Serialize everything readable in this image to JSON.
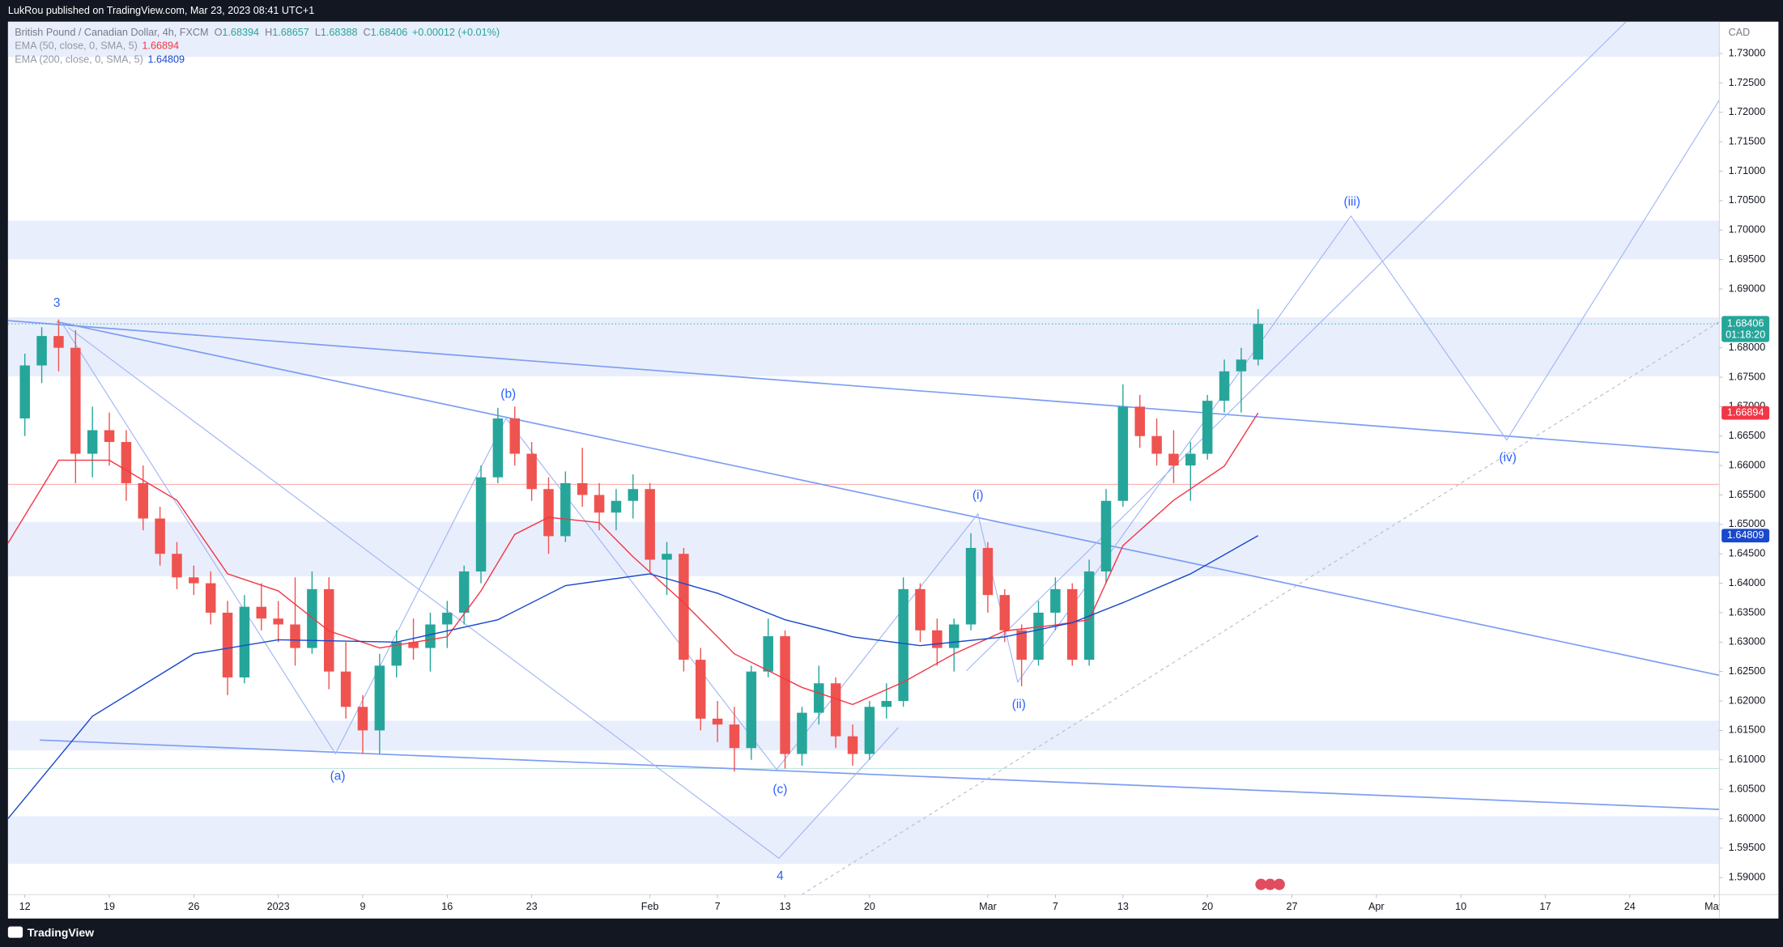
{
  "page": {
    "publisher": "LukRou published on TradingView.com, Mar 23, 2023 08:41 UTC+1",
    "brand": "TradingView"
  },
  "chart_data": {
    "type": "candlestick",
    "title": "British Pound / Canadian Dollar, 4h, FXCM",
    "quote": [
      {
        "label": "O",
        "value": "1.68394"
      },
      {
        "label": "H",
        "value": "1.68657"
      },
      {
        "label": "L",
        "value": "1.68388"
      },
      {
        "label": "C",
        "value": "1.68406"
      }
    ],
    "change": "+0.00012 (+0.01%)",
    "currency": "CAD",
    "countdown": "01:18:20",
    "up_color": "#26a69a",
    "down_color": "#ef5350",
    "grid": false,
    "x": [
      0,
      1,
      2,
      3,
      4,
      5,
      6,
      7,
      8,
      9,
      10,
      11,
      12,
      13,
      14,
      15,
      16,
      17,
      18,
      19,
      20,
      21,
      22,
      23,
      24,
      25,
      26,
      27,
      28,
      29,
      30,
      31,
      32,
      33,
      34,
      35,
      36,
      37,
      38,
      39,
      40,
      41,
      42,
      43,
      44,
      45,
      46,
      47,
      48,
      49,
      50,
      51,
      52,
      53,
      54,
      55,
      56,
      57,
      58,
      59,
      60,
      61,
      62,
      63,
      64,
      65,
      66,
      67,
      68,
      69,
      70,
      71,
      72,
      73
    ],
    "open": [
      1.668,
      1.677,
      1.682,
      1.68,
      1.662,
      1.666,
      1.664,
      1.657,
      1.651,
      1.645,
      1.641,
      1.64,
      1.635,
      1.624,
      1.636,
      1.634,
      1.633,
      1.629,
      1.639,
      1.625,
      1.619,
      1.615,
      1.626,
      1.63,
      1.629,
      1.633,
      1.635,
      1.642,
      1.658,
      1.668,
      1.662,
      1.656,
      1.648,
      1.657,
      1.655,
      1.652,
      1.654,
      1.656,
      1.644,
      1.645,
      1.627,
      1.617,
      1.616,
      1.612,
      1.625,
      1.631,
      1.611,
      1.618,
      1.623,
      1.614,
      1.611,
      1.619,
      1.62,
      1.639,
      1.632,
      1.629,
      1.633,
      1.646,
      1.638,
      1.632,
      1.627,
      1.635,
      1.639,
      1.627,
      1.642,
      1.654,
      1.67,
      1.665,
      1.662,
      1.66,
      1.662,
      1.671,
      1.676,
      1.678
    ],
    "high": [
      1.679,
      1.6835,
      1.6848,
      1.683,
      1.67,
      1.669,
      1.666,
      1.66,
      1.653,
      1.647,
      1.643,
      1.642,
      1.637,
      1.638,
      1.64,
      1.637,
      1.641,
      1.642,
      1.641,
      1.63,
      1.621,
      1.628,
      1.632,
      1.634,
      1.635,
      1.637,
      1.643,
      1.66,
      1.6698,
      1.67,
      1.664,
      1.658,
      1.659,
      1.663,
      1.657,
      1.656,
      1.6585,
      1.657,
      1.647,
      1.646,
      1.629,
      1.62,
      1.619,
      1.626,
      1.634,
      1.632,
      1.619,
      1.626,
      1.624,
      1.616,
      1.62,
      1.623,
      1.641,
      1.64,
      1.634,
      1.634,
      1.6485,
      1.647,
      1.639,
      1.633,
      1.637,
      1.641,
      1.64,
      1.644,
      1.656,
      1.6738,
      1.672,
      1.668,
      1.666,
      1.664,
      1.672,
      1.678,
      1.68,
      1.68657
    ],
    "low": [
      1.665,
      1.674,
      1.676,
      1.657,
      1.658,
      1.66,
      1.654,
      1.649,
      1.643,
      1.639,
      1.638,
      1.633,
      1.621,
      1.623,
      1.632,
      1.63,
      1.626,
      1.628,
      1.622,
      1.617,
      1.611,
      1.611,
      1.624,
      1.627,
      1.625,
      1.629,
      1.633,
      1.64,
      1.657,
      1.66,
      1.654,
      1.645,
      1.647,
      1.653,
      1.649,
      1.649,
      1.651,
      1.642,
      1.638,
      1.625,
      1.615,
      1.613,
      1.608,
      1.61,
      1.624,
      1.6085,
      1.609,
      1.616,
      1.612,
      1.609,
      1.61,
      1.617,
      1.619,
      1.63,
      1.626,
      1.625,
      1.632,
      1.635,
      1.63,
      1.6225,
      1.626,
      1.632,
      1.626,
      1.626,
      1.64,
      1.653,
      1.663,
      1.66,
      1.657,
      1.654,
      1.661,
      1.669,
      1.669,
      1.677
    ],
    "close": [
      1.677,
      1.682,
      1.68,
      1.662,
      1.666,
      1.664,
      1.657,
      1.651,
      1.645,
      1.641,
      1.64,
      1.635,
      1.624,
      1.636,
      1.634,
      1.633,
      1.629,
      1.639,
      1.625,
      1.619,
      1.615,
      1.626,
      1.63,
      1.629,
      1.633,
      1.635,
      1.642,
      1.658,
      1.668,
      1.662,
      1.656,
      1.648,
      1.657,
      1.655,
      1.652,
      1.654,
      1.656,
      1.644,
      1.645,
      1.627,
      1.617,
      1.616,
      1.612,
      1.625,
      1.631,
      1.611,
      1.618,
      1.623,
      1.614,
      1.611,
      1.619,
      1.62,
      1.639,
      1.632,
      1.629,
      1.633,
      1.646,
      1.638,
      1.632,
      1.627,
      1.635,
      1.639,
      1.627,
      1.642,
      1.654,
      1.67,
      1.665,
      1.662,
      1.66,
      1.662,
      1.671,
      1.676,
      1.678,
      1.68406
    ],
    "indicators": [
      {
        "name": "EMA (50, close, 0, SMA, 5)",
        "color": "#f23645",
        "x": [
          -1,
          2,
          5,
          9,
          12,
          15,
          18,
          21,
          25,
          27,
          29,
          31,
          34,
          36,
          39,
          42,
          46,
          49,
          52,
          55,
          58,
          61,
          63,
          65,
          68,
          71,
          73
        ],
        "values": [
          1.6468,
          1.6609,
          1.6609,
          1.6541,
          1.6416,
          1.6387,
          1.6319,
          1.629,
          1.6309,
          1.6387,
          1.6483,
          1.6512,
          1.6503,
          1.6445,
          1.6367,
          1.628,
          1.6223,
          1.6194,
          1.6232,
          1.628,
          1.6319,
          1.6329,
          1.6338,
          1.6464,
          1.6541,
          1.6599,
          1.66894
        ]
      },
      {
        "name": "EMA (200, close, 0, SMA, 5)",
        "color": "#1848cc",
        "x": [
          -1,
          4,
          10,
          15,
          22,
          28,
          32,
          37,
          41,
          45,
          49,
          53,
          58,
          62,
          65,
          69,
          73
        ],
        "values": [
          1.6,
          1.6174,
          1.628,
          1.6304,
          1.63,
          1.6338,
          1.6396,
          1.6416,
          1.6383,
          1.6338,
          1.6309,
          1.6294,
          1.6309,
          1.6333,
          1.6367,
          1.6416,
          1.64809
        ]
      }
    ],
    "annotations": [
      "3",
      "(b)",
      "(a)",
      "(c)",
      "4",
      "(i)",
      "(ii)",
      "(iii)",
      "(iv)"
    ],
    "xlim": [
      -1,
      100.3
    ],
    "xticks": [
      {
        "value": 0,
        "label": "12"
      },
      {
        "value": 5,
        "label": "19"
      },
      {
        "value": 10,
        "label": "26"
      },
      {
        "value": 15,
        "label": "2023"
      },
      {
        "value": 20,
        "label": "9"
      },
      {
        "value": 25,
        "label": "16"
      },
      {
        "value": 30,
        "label": "23"
      },
      {
        "value": 37,
        "label": "Feb"
      },
      {
        "value": 41,
        "label": "7"
      },
      {
        "value": 45,
        "label": "13"
      },
      {
        "value": 50,
        "label": "20"
      },
      {
        "value": 57,
        "label": "Mar"
      },
      {
        "value": 61,
        "label": "7"
      },
      {
        "value": 65,
        "label": "13"
      },
      {
        "value": 70,
        "label": "20"
      },
      {
        "value": 75,
        "label": "27"
      },
      {
        "value": 80,
        "label": "Apr"
      },
      {
        "value": 85,
        "label": "10"
      },
      {
        "value": 90,
        "label": "17"
      },
      {
        "value": 95,
        "label": "24"
      },
      {
        "value": 100,
        "label": "May"
      }
    ],
    "ylim": [
      1.5871,
      1.7354
    ],
    "yticks": [
      {
        "value": 1.59,
        "label": "1.59000"
      },
      {
        "value": 1.595,
        "label": "1.59500"
      },
      {
        "value": 1.6,
        "label": "1.60000"
      },
      {
        "value": 1.605,
        "label": "1.60500"
      },
      {
        "value": 1.61,
        "label": "1.61000"
      },
      {
        "value": 1.615,
        "label": "1.61500"
      },
      {
        "value": 1.62,
        "label": "1.62000"
      },
      {
        "value": 1.625,
        "label": "1.62500"
      },
      {
        "value": 1.63,
        "label": "1.63000"
      },
      {
        "value": 1.635,
        "label": "1.63500"
      },
      {
        "value": 1.64,
        "label": "1.64000"
      },
      {
        "value": 1.645,
        "label": "1.64500"
      },
      {
        "value": 1.65,
        "label": "1.65000"
      },
      {
        "value": 1.655,
        "label": "1.65500"
      },
      {
        "value": 1.66,
        "label": "1.66000"
      },
      {
        "value": 1.665,
        "label": "1.66500"
      },
      {
        "value": 1.67,
        "label": "1.67000"
      },
      {
        "value": 1.675,
        "label": "1.67500"
      },
      {
        "value": 1.68,
        "label": "1.68000"
      },
      {
        "value": 1.69,
        "label": "1.69000"
      },
      {
        "value": 1.695,
        "label": "1.69500"
      },
      {
        "value": 1.7,
        "label": "1.70000"
      },
      {
        "value": 1.705,
        "label": "1.70500"
      },
      {
        "value": 1.71,
        "label": "1.71000"
      },
      {
        "value": 1.715,
        "label": "1.71500"
      },
      {
        "value": 1.72,
        "label": "1.72000"
      },
      {
        "value": 1.725,
        "label": "1.72500"
      },
      {
        "value": 1.73,
        "label": "1.73000"
      }
    ]
  }
}
